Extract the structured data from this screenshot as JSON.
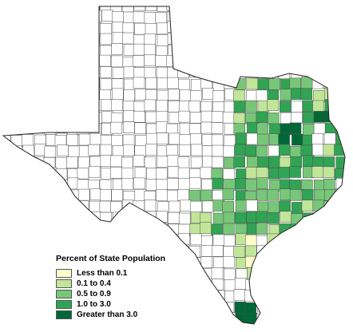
{
  "legend": {
    "title": "Percent of State Population",
    "classes": [
      {
        "label": "Less than 0.1",
        "color": "#ffffcc"
      },
      {
        "label": "0.1 to 0.4",
        "color": "#c2e699"
      },
      {
        "label": "0.5 to 0.9",
        "color": "#78c679"
      },
      {
        "label": "1.0 to 3.0",
        "color": "#31a354"
      },
      {
        "label": "Greater than 3.0",
        "color": "#006837"
      }
    ]
  },
  "colors": {
    "outline": "#222222",
    "county_border": "#4d4d4d",
    "background": "#ffffff"
  }
}
